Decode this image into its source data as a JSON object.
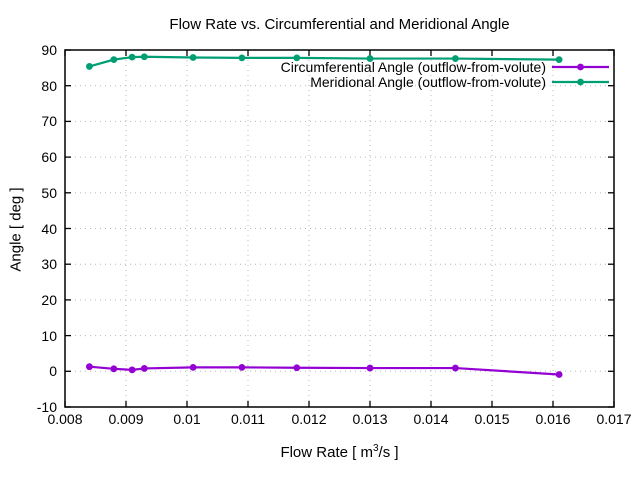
{
  "chart_data": {
    "type": "line",
    "title": "Flow Rate vs. Circumferential and Meridional Angle",
    "xlabel": {
      "prefix": "Flow Rate [ m",
      "sup": "3",
      "suffix": "/s ]"
    },
    "ylabel": "Angle [ deg ]",
    "xlim": [
      0.008,
      0.017
    ],
    "ylim": [
      -10,
      90
    ],
    "xticks": [
      0.008,
      0.009,
      0.01,
      0.011,
      0.012,
      0.013,
      0.014,
      0.015,
      0.016,
      0.017
    ],
    "xtick_labels": [
      "0.008",
      "0.009",
      "0.01",
      "0.011",
      "0.012",
      "0.013",
      "0.014",
      "0.015",
      "0.016",
      "0.017"
    ],
    "yticks": [
      -10,
      0,
      10,
      20,
      30,
      40,
      50,
      60,
      70,
      80,
      90
    ],
    "ytick_labels": [
      "-10",
      "0",
      "10",
      "20",
      "30",
      "40",
      "50",
      "60",
      "70",
      "80",
      "90"
    ],
    "grid": true,
    "legend_position": "top-right-inside",
    "x": [
      0.0084,
      0.0088,
      0.0091,
      0.0093,
      0.0101,
      0.0109,
      0.0118,
      0.013,
      0.0144,
      0.0161
    ],
    "series": [
      {
        "name": "Circumferential Angle (outflow-from-volute)",
        "color": "#9400d3",
        "values": [
          1.3,
          0.7,
          0.4,
          0.8,
          1.1,
          1.1,
          1.0,
          0.9,
          0.9,
          -0.9
        ]
      },
      {
        "name": "Meridional Angle (outflow-from-volute)",
        "color": "#009e73",
        "values": [
          85.4,
          87.3,
          88.0,
          88.1,
          87.9,
          87.8,
          87.8,
          87.6,
          87.6,
          87.3
        ]
      }
    ],
    "colors": {
      "border": "#000000",
      "grid": "#b8b8b8",
      "background": "#ffffff"
    }
  }
}
